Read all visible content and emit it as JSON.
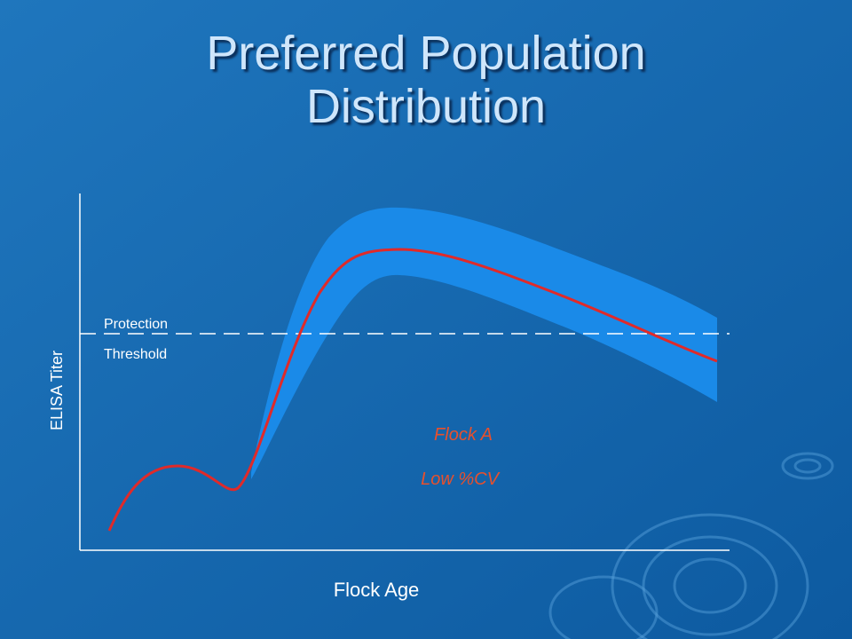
{
  "title": "Preferred Population Distribution",
  "y_axis_label": "ELISA Titer",
  "x_axis_label": "Flock Age",
  "threshold_label": {
    "line1": "Protection",
    "line2": "Threshold"
  },
  "annotation": {
    "line1": "Flock A",
    "line2": "Low %CV"
  }
}
